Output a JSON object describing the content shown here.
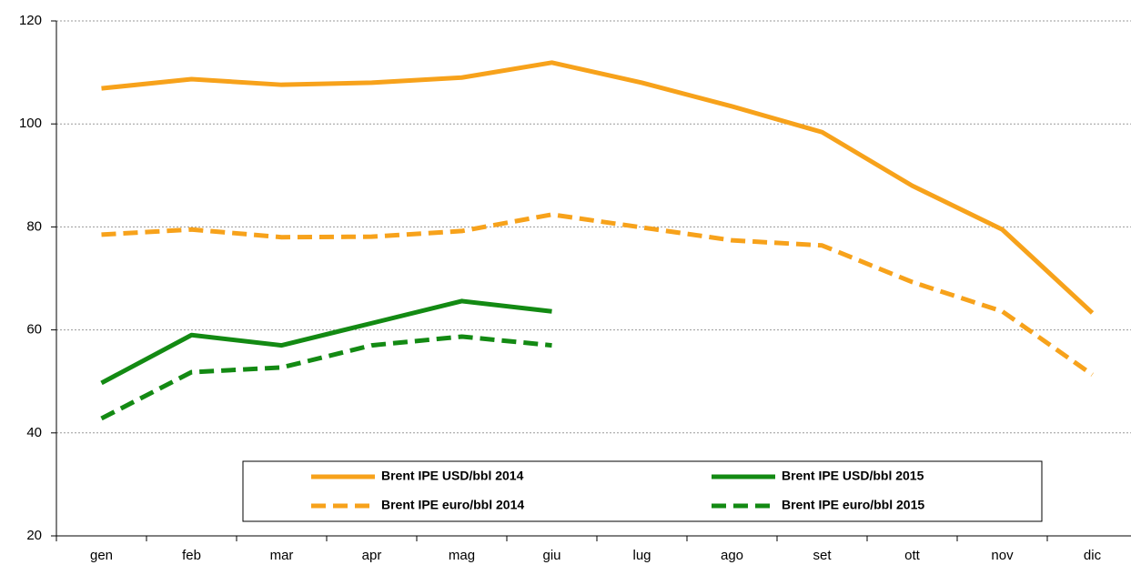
{
  "chart_data": {
    "type": "line",
    "categories": [
      "gen",
      "feb",
      "mar",
      "apr",
      "mag",
      "giu",
      "lug",
      "ago",
      "set",
      "ott",
      "nov",
      "dic"
    ],
    "series": [
      {
        "name": "Brent IPE USD/bbl 2014",
        "color": "#f7a21b",
        "dashed": false,
        "values": [
          106.9,
          108.7,
          107.6,
          108,
          109,
          111.9,
          108,
          103.4,
          98.4,
          88,
          79.5,
          63.3
        ]
      },
      {
        "name": "Brent IPE USD/bbl 2015",
        "color": "#138a13",
        "dashed": false,
        "values": [
          49.7,
          59,
          57,
          61.3,
          65.6,
          63.6,
          null,
          null,
          null,
          null,
          null,
          null
        ]
      },
      {
        "name": "Brent IPE euro/bbl 2014",
        "color": "#f7a21b",
        "dashed": true,
        "values": [
          78.5,
          79.5,
          78,
          78.1,
          79.2,
          82.4,
          79.9,
          77.4,
          76.4,
          69.3,
          63.6,
          51.3
        ]
      },
      {
        "name": "Brent IPE euro/bbl 2015",
        "color": "#138a13",
        "dashed": true,
        "values": [
          42.8,
          51.8,
          52.7,
          57,
          58.7,
          57,
          null,
          null,
          null,
          null,
          null,
          null
        ]
      }
    ],
    "ylim": [
      20,
      120
    ],
    "yticks": [
      20,
      40,
      60,
      80,
      100,
      120
    ],
    "grid": true,
    "legend": "bottom"
  }
}
